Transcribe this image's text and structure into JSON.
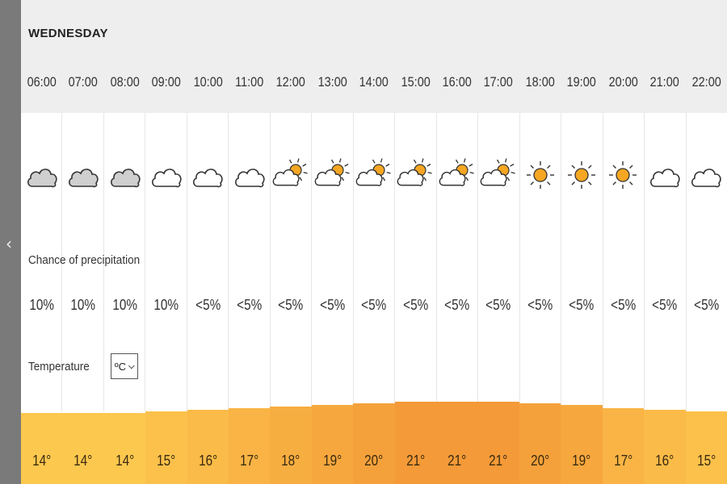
{
  "day": "WEDNESDAY",
  "nav": {
    "prev_icon": "chevron-left-icon",
    "prev_glyph": "‹"
  },
  "hours": [
    "06:00",
    "07:00",
    "08:00",
    "09:00",
    "10:00",
    "11:00",
    "12:00",
    "13:00",
    "14:00",
    "15:00",
    "16:00",
    "17:00",
    "18:00",
    "19:00",
    "20:00",
    "21:00",
    "22:00"
  ],
  "weather_icons": [
    "cloudy-gray-icon",
    "cloudy-gray-icon",
    "cloudy-gray-icon",
    "cloud-icon",
    "cloud-icon",
    "cloud-icon",
    "sun-behind-cloud-icon",
    "sun-behind-cloud-icon",
    "sun-behind-cloud-icon",
    "sun-behind-cloud-icon",
    "sun-behind-cloud-icon",
    "sun-behind-cloud-icon",
    "sun-icon",
    "sun-icon",
    "sun-icon",
    "cloud-icon",
    "cloud-icon"
  ],
  "precipitation": {
    "label": "Chance of precipitation",
    "values": [
      "10%",
      "10%",
      "10%",
      "10%",
      "<5%",
      "<5%",
      "<5%",
      "<5%",
      "<5%",
      "<5%",
      "<5%",
      "<5%",
      "<5%",
      "<5%",
      "<5%",
      "<5%",
      "<5%"
    ]
  },
  "temperature": {
    "label": "Temperature",
    "unit": "ºC",
    "values": [
      14,
      14,
      14,
      15,
      16,
      17,
      18,
      19,
      20,
      21,
      21,
      21,
      20,
      19,
      17,
      16,
      15
    ],
    "suffix": "°"
  },
  "colors": {
    "sun": "#f5a623",
    "cloud_fill": "#cfcfcf",
    "temp_low": "#fcc84e",
    "temp_high": "#f49a38"
  }
}
